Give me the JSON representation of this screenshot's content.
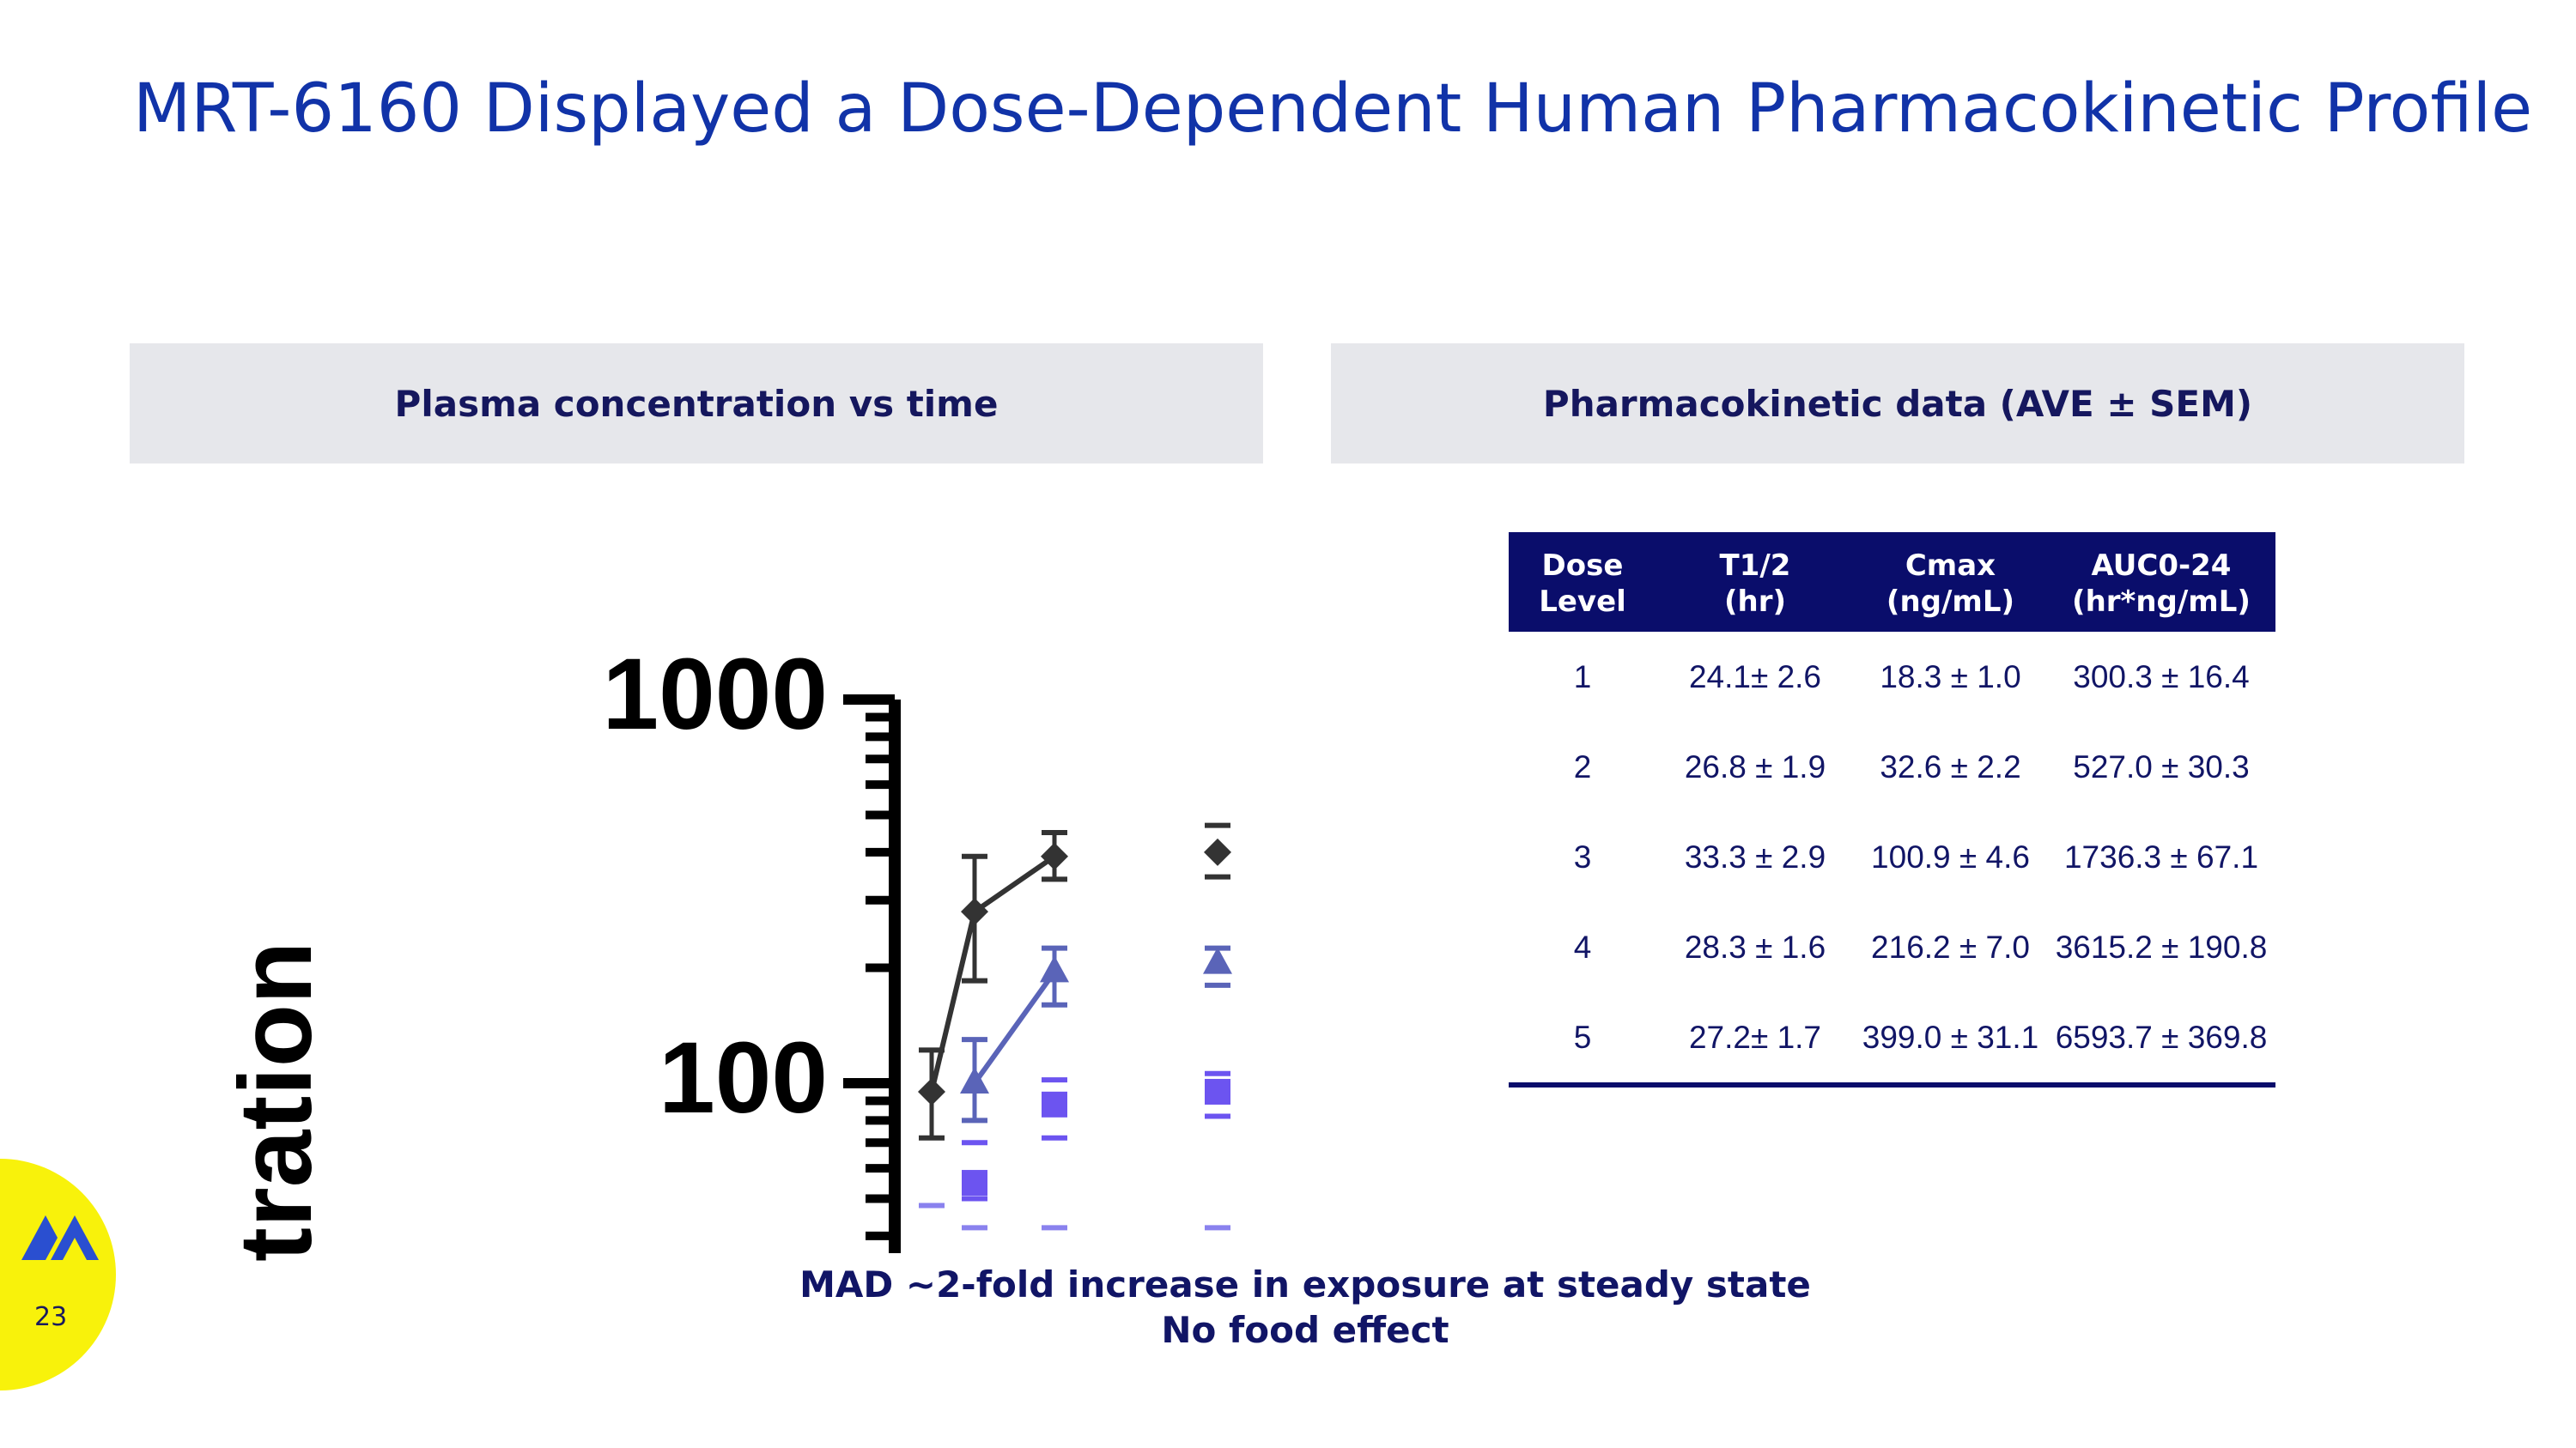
{
  "title": "MRT-6160 Displayed a Dose-Dependent Human Pharmacokinetic Profile",
  "left_panel": {
    "header": "Plasma concentration vs time"
  },
  "right_panel": {
    "header": "Pharmacokinetic data  (AVE ± SEM)"
  },
  "table": {
    "columns": [
      "Dose\nLevel",
      "T1/2\n(hr)",
      "Cmax\n(ng/mL)",
      "AUC0-24\n(hr*ng/mL)"
    ],
    "rows": [
      [
        "1",
        "24.1± 2.6",
        "18.3 ± 1.0",
        "300.3 ± 16.4"
      ],
      [
        "2",
        "26.8 ± 1.9",
        "32.6 ± 2.2",
        "527.0 ± 30.3"
      ],
      [
        "3",
        "33.3 ± 2.9",
        "100.9 ± 4.6",
        "1736.3 ± 67.1"
      ],
      [
        "4",
        "28.3 ± 1.6",
        "216.2 ± 7.0",
        "3615.2 ± 190.8"
      ],
      [
        "5",
        "27.2± 1.7",
        "399.0 ± 31.1",
        "6593.7 ± 369.8"
      ]
    ]
  },
  "captions": [
    "MAD ~2-fold increase in exposure at steady state",
    "No food effect"
  ],
  "page_number": "23",
  "colors": {
    "title": "#1133a8",
    "header_bg": "#e6e7eb",
    "table_header_bg": "#0a0d6b",
    "dark_series": "#333333",
    "blue_series": "#5a64b8",
    "purple_series": "#6c54f0",
    "light_purple": "#8a82ee",
    "logo_yellow": "#f8f20b",
    "logo_blue": "#2a4fd0"
  },
  "chart_data": {
    "type": "scatter",
    "scale": "log",
    "yaxis": {
      "ticks": [
        100,
        1000
      ],
      "ylim": [
        40,
        1000
      ]
    },
    "ylabel_visible_fragment": "tration",
    "series": [
      {
        "name": "dark",
        "marker": "diamond",
        "points": [
          {
            "value": 95,
            "lo": 72,
            "hi": 122,
            "connected": true
          },
          {
            "value": 280,
            "lo": 185,
            "hi": 390,
            "connected": true
          },
          {
            "value": 390,
            "lo": 340,
            "hi": 450,
            "connected": true
          },
          {
            "value": 400,
            "lo": 345,
            "hi": 470,
            "connected": false
          }
        ]
      },
      {
        "name": "blue",
        "marker": "triangle",
        "points": [
          {
            "value": 100,
            "lo": 80,
            "hi": 130,
            "connected": true
          },
          {
            "value": 195,
            "lo": 160,
            "hi": 225,
            "connected": true
          },
          {
            "value": 205,
            "lo": 180,
            "hi": 225,
            "connected": false
          }
        ]
      },
      {
        "name": "purple",
        "marker": "square",
        "points": [
          {
            "value": 55,
            "lo": 50,
            "hi": 70,
            "connected": false
          },
          {
            "value": 88,
            "lo": 72,
            "hi": 102,
            "connected": false
          },
          {
            "value": 95,
            "lo": 82,
            "hi": 106,
            "connected": false
          }
        ]
      },
      {
        "name": "light",
        "marker": "dash",
        "points": [
          {
            "value": 48
          },
          {
            "value": 42
          },
          {
            "value": 42
          },
          {
            "value": 42
          }
        ]
      }
    ]
  }
}
